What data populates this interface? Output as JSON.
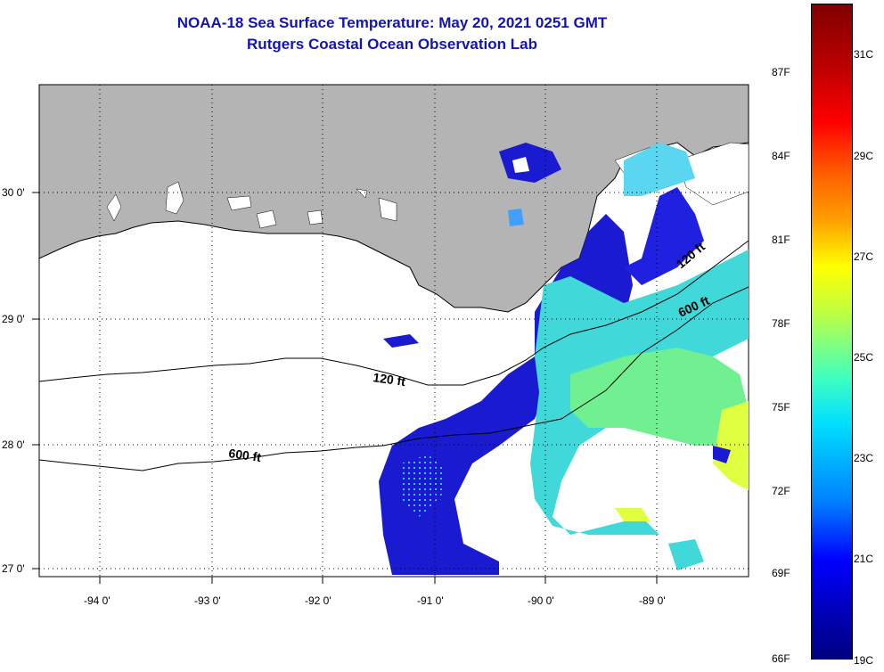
{
  "title": {
    "line1": "NOAA-18 Sea Surface Temperature:  May 20, 2021 0251 GMT",
    "line2": "Rutgers Coastal Ocean Observation Lab"
  },
  "map": {
    "lon_labels": [
      "-94 0'",
      "-93 0'",
      "-92 0'",
      "-91 0'",
      "-90 0'",
      "-89 0'"
    ],
    "lat_labels": [
      "30 0'",
      "29 0'",
      "28 0'",
      "27 0'"
    ],
    "contour_labels": [
      "120 ft",
      "600 ft",
      "120 ft",
      "600 ft"
    ],
    "land_color": "#b4b4b4"
  },
  "colorbar": {
    "f_labels": [
      "87F",
      "84F",
      "81F",
      "78F",
      "75F",
      "72F",
      "69F",
      "66F"
    ],
    "c_labels": [
      "31C",
      "29C",
      "27C",
      "25C",
      "23C",
      "21C",
      "19C"
    ],
    "colors": [
      "#800000",
      "#ff0000",
      "#ffa000",
      "#ffff00",
      "#40ffc0",
      "#00e0ff",
      "#0080ff",
      "#0000ff",
      "#000080"
    ]
  }
}
